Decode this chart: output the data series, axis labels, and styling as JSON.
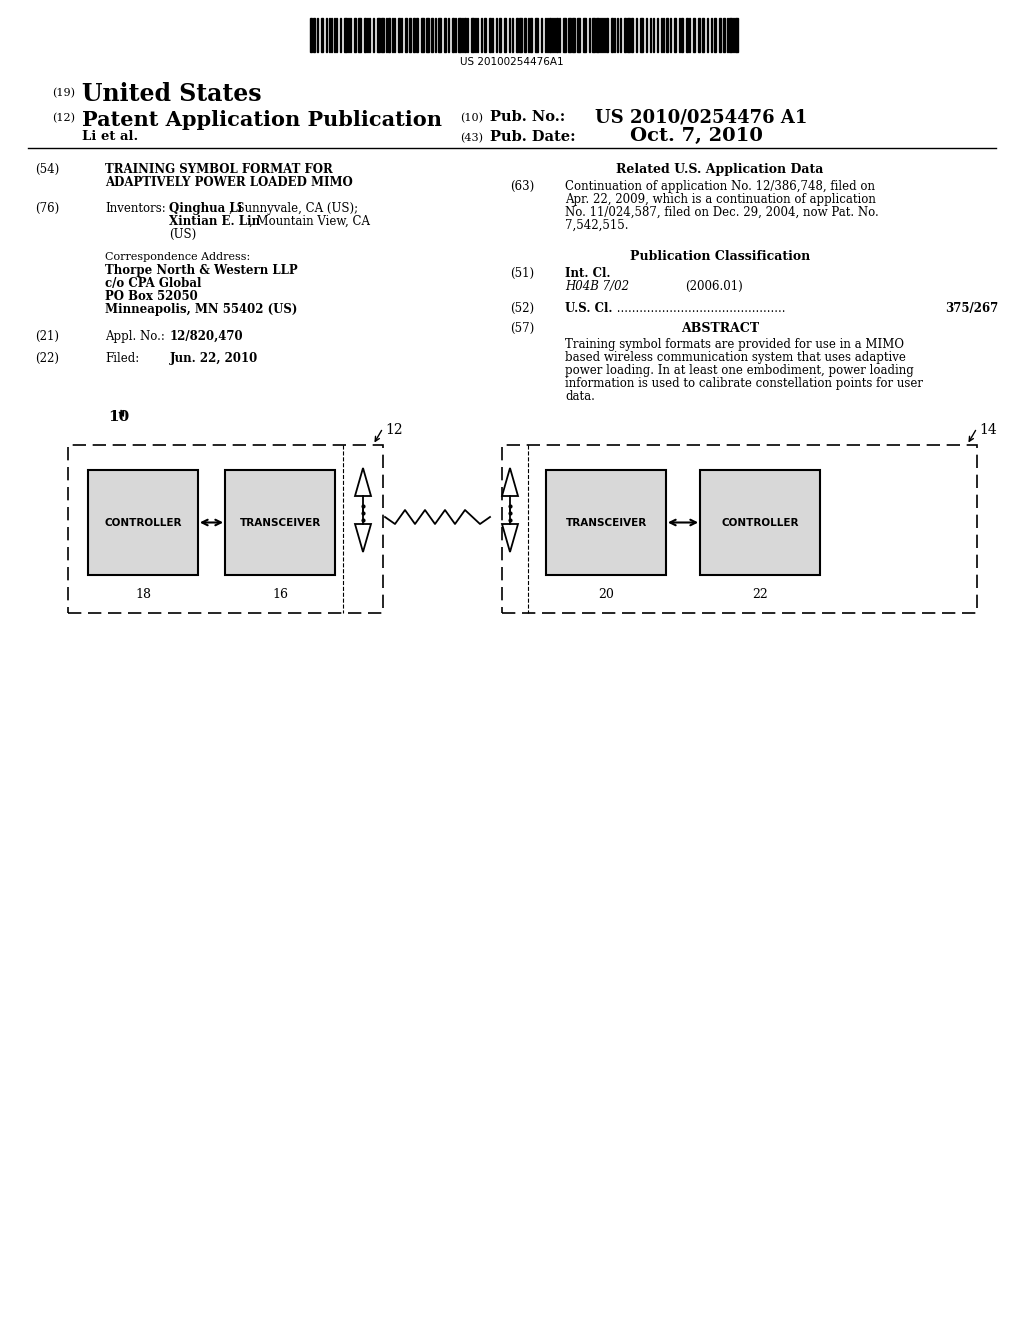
{
  "bg_color": "#ffffff",
  "barcode_text": "US 20100254476A1",
  "field54_line1": "TRAINING SYMBOL FORMAT FOR",
  "field54_line2": "ADAPTIVELY POWER LOADED MIMO",
  "field76_inventor1_bold": "Qinghua Li",
  "field76_inventor1_rest": ", Sunnyvale, CA (US);",
  "field76_inventor2_bold": "Xintian E. Lin",
  "field76_inventor2_rest": ", Mountain View, CA",
  "field76_inventor3": "(US)",
  "corr_line0": "Correspondence Address:",
  "corr_line1": "Thorpe North & Western LLP",
  "corr_line2": "c/o CPA Global",
  "corr_line3": "PO Box 52050",
  "corr_line4": "Minneapolis, MN 55402 (US)",
  "field21_value": "12/820,470",
  "field22_value": "Jun. 22, 2010",
  "related_title": "Related U.S. Application Data",
  "field63_text": "Continuation of application No. 12/386,748, filed on\nApr. 22, 2009, which is a continuation of application\nNo. 11/024,587, filed on Dec. 29, 2004, now Pat. No.\n7,542,515.",
  "pubclass_title": "Publication Classification",
  "field51_class": "H04B 7/02",
  "field51_year": "(2006.01)",
  "field52_value": "375/267",
  "field57_text": "Training symbol formats are provided for use in a MIMO\nbased wireless communication system that uses adaptive\npower loading. In at least one embodiment, power loading\ninformation is used to calibrate constellation points for user\ndata.",
  "lbl_10": "10",
  "lbl_12": "12",
  "lbl_14": "14",
  "lbl_16": "16",
  "lbl_18": "18",
  "lbl_20": "20",
  "lbl_22": "22"
}
